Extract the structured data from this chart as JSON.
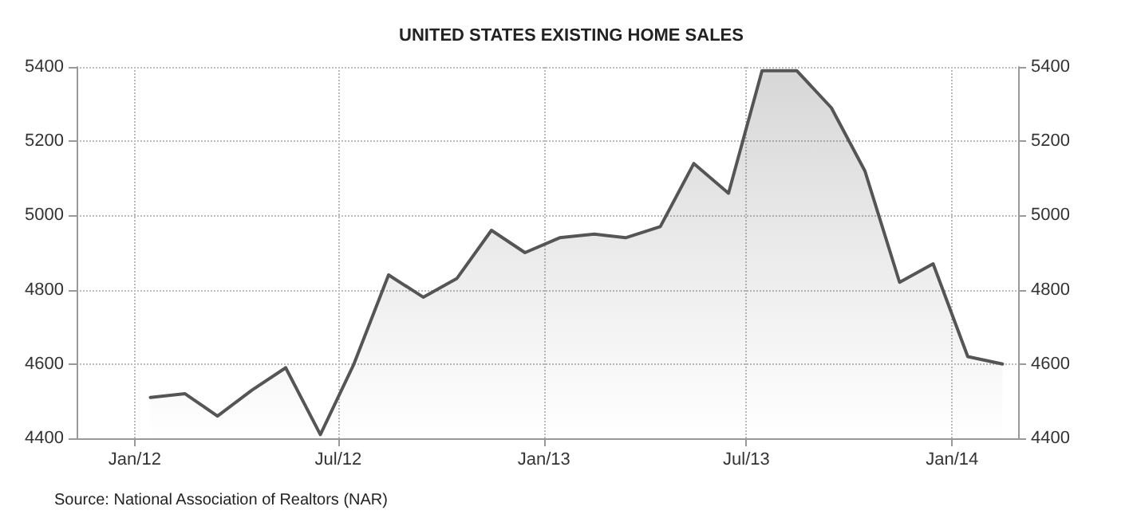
{
  "chart_data": {
    "type": "area",
    "title": "UNITED STATES EXISTING HOME SALES",
    "x": [
      "2012-01-15",
      "2012-02-15",
      "2012-03-15",
      "2012-04-15",
      "2012-05-15",
      "2012-06-15",
      "2012-07-15",
      "2012-08-15",
      "2012-09-15",
      "2012-10-15",
      "2012-11-15",
      "2012-12-15",
      "2013-01-15",
      "2013-02-15",
      "2013-03-15",
      "2013-04-15",
      "2013-05-15",
      "2013-06-15",
      "2013-07-15",
      "2013-08-15",
      "2013-09-15",
      "2013-10-15",
      "2013-11-15",
      "2013-12-15",
      "2014-01-15",
      "2014-02-15"
    ],
    "series": [
      {
        "color": "#555555",
        "values": [
          4510,
          4520,
          4460,
          4530,
          4590,
          4410,
          4600,
          4840,
          4780,
          4830,
          4960,
          4900,
          4940,
          4950,
          4940,
          4970,
          5140,
          5060,
          5390,
          5390,
          5290,
          5120,
          4820,
          4870,
          4620,
          4600
        ]
      }
    ],
    "xlim": [
      "2011-11-10",
      "2014-03-01"
    ],
    "xticks": [
      {
        "value": "2012-01",
        "label": "Jan/12"
      },
      {
        "value": "2012-07",
        "label": "Jul/12"
      },
      {
        "value": "2013-01",
        "label": "Jan/13"
      },
      {
        "value": "2013-07",
        "label": "Jul/13"
      },
      {
        "value": "2014-01",
        "label": "Jan/14"
      }
    ],
    "ylim": [
      4400,
      5400
    ],
    "yticks": [
      4400,
      4600,
      4800,
      5000,
      5200,
      5400
    ],
    "y2lim": [
      4400,
      5400
    ],
    "y2ticks": [
      4400,
      4600,
      4800,
      5000,
      5200,
      5400
    ],
    "grid": true,
    "marker": "none",
    "line_style": "solid",
    "annotations": [
      "Source: National Association of Realtors (NAR)"
    ]
  }
}
